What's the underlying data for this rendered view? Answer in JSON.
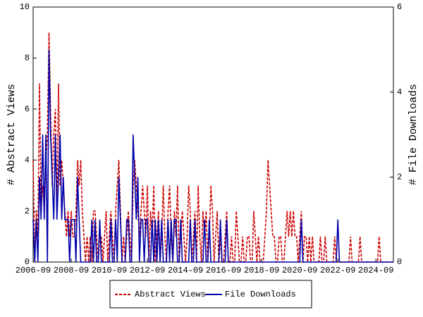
{
  "chart_data": {
    "type": "line",
    "y_label": "# Abstract Views",
    "y2_label": "# File Downloads",
    "categories": [
      "2006-09",
      null,
      null,
      null,
      null,
      null,
      null,
      null,
      null,
      null,
      null,
      null,
      null,
      null,
      null,
      null,
      null,
      null,
      null,
      null,
      null,
      null,
      null,
      null,
      "2008-09",
      null,
      null,
      null,
      null,
      null,
      null,
      null,
      null,
      null,
      null,
      null,
      null,
      null,
      null,
      null,
      null,
      null,
      null,
      null,
      null,
      null,
      null,
      null,
      "2010-09",
      null,
      null,
      null,
      null,
      null,
      null,
      null,
      null,
      null,
      null,
      null,
      null,
      null,
      null,
      null,
      null,
      null,
      null,
      null,
      null,
      null,
      null,
      null,
      "2012-09",
      null,
      null,
      null,
      null,
      null,
      null,
      null,
      null,
      null,
      null,
      null,
      null,
      null,
      null,
      null,
      null,
      null,
      null,
      null,
      null,
      null,
      null,
      null,
      "2014-09",
      null,
      null,
      null,
      null,
      null,
      null,
      null,
      null,
      null,
      null,
      null,
      null,
      null,
      null,
      null,
      null,
      null,
      null,
      null,
      null,
      null,
      null,
      null,
      "2016-09",
      null,
      null,
      null,
      null,
      null,
      null,
      null,
      null,
      null,
      null,
      null,
      null,
      null,
      null,
      null,
      null,
      null,
      null,
      null,
      null,
      null,
      null,
      null,
      "2018-09",
      null,
      null,
      null,
      null,
      null,
      null,
      null,
      null,
      null,
      null,
      null,
      null,
      null,
      null,
      null,
      null,
      null,
      null,
      null,
      null,
      null,
      null,
      null,
      "2020-09",
      null,
      null,
      null,
      null,
      null,
      null,
      null,
      null,
      null,
      null,
      null,
      null,
      null,
      null,
      null,
      null,
      null,
      null,
      null,
      null,
      null,
      null,
      null,
      "2022-09",
      null,
      null,
      null,
      null,
      null,
      null,
      null,
      null,
      null,
      null,
      null,
      null,
      null,
      null,
      null,
      null,
      null,
      null,
      null,
      null,
      null,
      null,
      null,
      "2024-09",
      null,
      null,
      null,
      null,
      null,
      null,
      null,
      null,
      null,
      null,
      null
    ],
    "series": [
      {
        "name": "Abstract Views",
        "color": "#cc0000",
        "dash": true,
        "axis": "y",
        "values": [
          4,
          0,
          2,
          1,
          7,
          2,
          3,
          2,
          4,
          5,
          9,
          6,
          3,
          5,
          6,
          2,
          7,
          3,
          4,
          3,
          2,
          1,
          2,
          1,
          2,
          1,
          1,
          2,
          4,
          3,
          4,
          2,
          1,
          0,
          1,
          0,
          1,
          0,
          2,
          2,
          1,
          0,
          1,
          1,
          0,
          1,
          2,
          0,
          1,
          2,
          1,
          0,
          2,
          3,
          4,
          2,
          0,
          1,
          0,
          1,
          2,
          1,
          0,
          3,
          4,
          3,
          2,
          1,
          2,
          3,
          2,
          1,
          3,
          0,
          2,
          1,
          3,
          0,
          1,
          2,
          0,
          1,
          3,
          1,
          0,
          2,
          3,
          1,
          0,
          2,
          1,
          3,
          0,
          1,
          2,
          1,
          0,
          1,
          3,
          2,
          0,
          1,
          2,
          0,
          3,
          1,
          0,
          2,
          1,
          2,
          0,
          1,
          3,
          2,
          0,
          1,
          2,
          0,
          1,
          0,
          0,
          1,
          2,
          0,
          0,
          1,
          0,
          0,
          2,
          1,
          0,
          0,
          1,
          0,
          0,
          1,
          1,
          0,
          0,
          2,
          1,
          0,
          1,
          0,
          0,
          0,
          1,
          2,
          4,
          3,
          2,
          1,
          1,
          0,
          0,
          1,
          1,
          0,
          0,
          1,
          2,
          1,
          2,
          1,
          2,
          1,
          1,
          0,
          1,
          2,
          0,
          1,
          1,
          0,
          1,
          0,
          1,
          0,
          0,
          0,
          0,
          1,
          0,
          0,
          1,
          0,
          0,
          0,
          0,
          0,
          1,
          0,
          0,
          0,
          0,
          0,
          0,
          0,
          0,
          0,
          1,
          0,
          0,
          0,
          0,
          0,
          1,
          0,
          0,
          0,
          0,
          0,
          0,
          0,
          0,
          0,
          0,
          0,
          1,
          0,
          0,
          0,
          0,
          0,
          0,
          0,
          0,
          0
        ]
      },
      {
        "name": "File Downloads",
        "color": "#0000aa",
        "dash": false,
        "axis": "y2",
        "values": [
          1,
          0,
          1,
          0,
          2,
          1,
          3,
          1,
          3,
          0,
          5,
          3,
          2,
          1,
          3,
          1,
          2,
          3,
          1,
          2,
          1,
          1,
          1,
          0,
          1,
          1,
          1,
          0,
          2,
          1,
          0,
          0,
          0,
          0,
          0,
          0,
          0,
          1,
          0,
          1,
          0,
          0,
          1,
          0,
          0,
          0,
          0,
          0,
          0,
          1,
          0,
          0,
          1,
          0,
          2,
          1,
          0,
          0,
          0,
          1,
          1,
          0,
          0,
          3,
          2,
          1,
          2,
          0,
          1,
          1,
          0,
          1,
          1,
          0,
          0,
          1,
          0,
          1,
          0,
          1,
          0,
          1,
          0,
          0,
          0,
          1,
          0,
          1,
          0,
          1,
          1,
          0,
          0,
          1,
          0,
          0,
          0,
          0,
          0,
          1,
          0,
          0,
          1,
          0,
          0,
          0,
          0,
          0,
          1,
          0,
          0,
          1,
          0,
          0,
          0,
          0,
          0,
          0,
          1,
          0,
          0,
          0,
          1,
          0,
          0,
          0,
          0,
          0,
          0,
          0,
          0,
          0,
          0,
          0,
          0,
          0,
          0,
          0,
          0,
          0,
          0,
          0,
          0,
          0,
          0,
          0,
          0,
          0,
          0,
          0,
          0,
          0,
          0,
          0,
          0,
          0,
          0,
          0,
          0,
          0,
          0,
          0,
          0,
          0,
          0,
          0,
          0,
          0,
          0,
          1,
          0,
          0,
          0,
          0,
          0,
          0,
          0,
          0,
          0,
          0,
          0,
          0,
          0,
          0,
          0,
          0,
          0,
          0,
          0,
          0,
          0,
          0,
          1,
          0,
          0,
          0,
          0,
          0,
          0,
          0,
          0,
          0,
          0,
          0,
          0,
          0,
          0,
          0,
          0,
          0,
          0,
          0,
          0,
          0,
          0,
          0,
          0,
          0,
          0,
          0,
          0,
          0,
          0,
          0,
          0,
          0,
          0,
          0
        ]
      }
    ],
    "ylim": [
      0,
      10
    ],
    "yticks": [
      0,
      2,
      4,
      6,
      8,
      10
    ],
    "y2lim": [
      0,
      6
    ],
    "y2ticks": [
      0,
      2,
      4,
      6
    ]
  }
}
